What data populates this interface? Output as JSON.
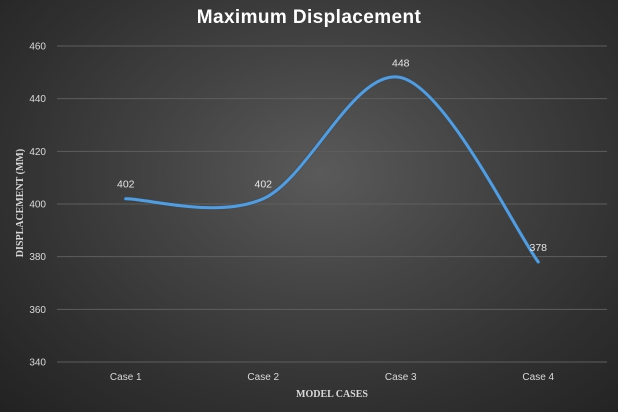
{
  "chart_data": {
    "type": "line",
    "title": "Maximum Displacement",
    "xlabel": "MODEL CASES",
    "ylabel": "DISPLACEMENT (MM)",
    "categories": [
      "Case 1",
      "Case 2",
      "Case 3",
      "Case 4"
    ],
    "series": [
      {
        "values": [
          402,
          402,
          448,
          378
        ]
      }
    ],
    "ylim": [
      340,
      460
    ],
    "yticks": [
      340,
      360,
      380,
      400,
      420,
      440,
      460
    ],
    "data_labels": [
      "402",
      "402",
      "448",
      "378"
    ],
    "smoothed": true,
    "grid": true,
    "line_color": "#5b9bd5"
  }
}
